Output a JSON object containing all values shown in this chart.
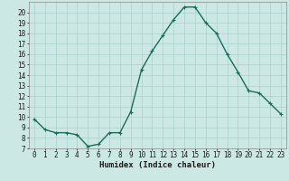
{
  "x": [
    0,
    1,
    2,
    3,
    4,
    5,
    6,
    7,
    8,
    9,
    10,
    11,
    12,
    13,
    14,
    15,
    16,
    17,
    18,
    19,
    20,
    21,
    22,
    23
  ],
  "y": [
    9.8,
    8.8,
    8.5,
    8.5,
    8.3,
    7.2,
    7.4,
    8.5,
    8.5,
    10.5,
    14.5,
    16.3,
    17.8,
    19.3,
    20.5,
    20.5,
    19.0,
    18.0,
    16.0,
    14.3,
    12.5,
    12.3,
    11.3,
    10.3
  ],
  "xlabel": "Humidex (Indice chaleur)",
  "line_color": "#1a6b5a",
  "marker": "+",
  "marker_color": "#1a6b5a",
  "bg_color": "#cce8e4",
  "grid_color": "#aad0cc",
  "spine_color": "#888888",
  "xlim": [
    -0.5,
    23.5
  ],
  "ylim": [
    7,
    21
  ],
  "yticks": [
    7,
    8,
    9,
    10,
    11,
    12,
    13,
    14,
    15,
    16,
    17,
    18,
    19,
    20
  ],
  "xticks": [
    0,
    1,
    2,
    3,
    4,
    5,
    6,
    7,
    8,
    9,
    10,
    11,
    12,
    13,
    14,
    15,
    16,
    17,
    18,
    19,
    20,
    21,
    22,
    23
  ],
  "tick_fontsize": 5.5,
  "xlabel_fontsize": 6.5,
  "linewidth": 1.0,
  "markersize": 3.5,
  "markeredgewidth": 0.8
}
